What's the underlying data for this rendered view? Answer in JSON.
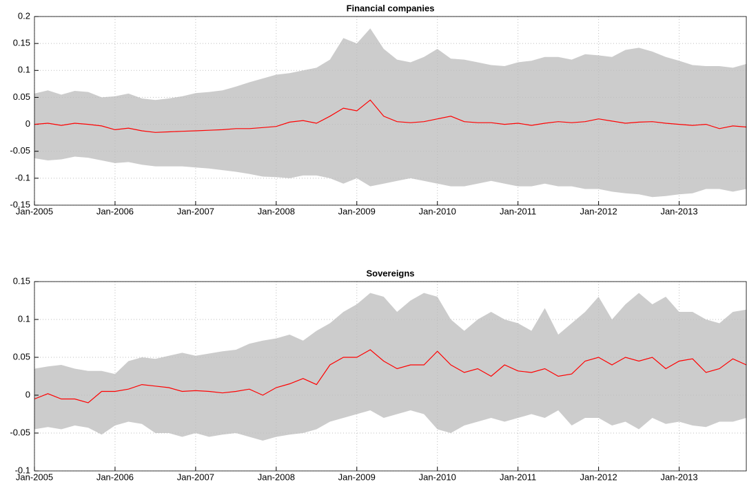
{
  "chart_data": [
    {
      "type": "band-line",
      "title": "Financial companies",
      "x": [
        "2005-01",
        "2005-03",
        "2005-05",
        "2005-07",
        "2005-09",
        "2005-11",
        "2006-01",
        "2006-03",
        "2006-05",
        "2006-07",
        "2006-09",
        "2006-11",
        "2007-01",
        "2007-03",
        "2007-05",
        "2007-07",
        "2007-09",
        "2007-11",
        "2008-01",
        "2008-03",
        "2008-05",
        "2008-07",
        "2008-09",
        "2008-11",
        "2009-01",
        "2009-03",
        "2009-05",
        "2009-07",
        "2009-09",
        "2009-11",
        "2010-01",
        "2010-03",
        "2010-05",
        "2010-07",
        "2010-09",
        "2010-11",
        "2011-01",
        "2011-03",
        "2011-05",
        "2011-07",
        "2011-09",
        "2011-11",
        "2012-01",
        "2012-03",
        "2012-05",
        "2012-07",
        "2012-09",
        "2012-11",
        "2013-01",
        "2013-03",
        "2013-05",
        "2013-07",
        "2013-09",
        "2013-11"
      ],
      "values": [
        0,
        0.002,
        -0.002,
        0.002,
        0,
        -0.003,
        -0.01,
        -0.007,
        -0.012,
        -0.015,
        -0.014,
        -0.013,
        -0.012,
        -0.011,
        -0.01,
        -0.008,
        -0.008,
        -0.006,
        -0.004,
        0.004,
        0.007,
        0.002,
        0.015,
        0.03,
        0.025,
        0.045,
        0.015,
        0.005,
        0.003,
        0.005,
        0.01,
        0.015,
        0.005,
        0.003,
        0.003,
        0,
        0.002,
        -0.002,
        0.002,
        0.005,
        0.003,
        0.005,
        0.01,
        0.006,
        0.002,
        0.004,
        0.005,
        0.002,
        0,
        -0.002,
        0,
        -0.008,
        -0.003,
        -0.005
      ],
      "color": "#ff0000",
      "band": {
        "color": "#cccccc",
        "upper": [
          0.057,
          0.063,
          0.055,
          0.062,
          0.06,
          0.05,
          0.052,
          0.057,
          0.048,
          0.045,
          0.048,
          0.052,
          0.058,
          0.06,
          0.063,
          0.07,
          0.078,
          0.085,
          0.092,
          0.095,
          0.1,
          0.105,
          0.12,
          0.16,
          0.15,
          0.178,
          0.14,
          0.12,
          0.115,
          0.125,
          0.14,
          0.122,
          0.12,
          0.115,
          0.11,
          0.108,
          0.115,
          0.118,
          0.125,
          0.125,
          0.12,
          0.13,
          0.128,
          0.125,
          0.138,
          0.142,
          0.135,
          0.125,
          0.118,
          0.11,
          0.108,
          0.108,
          0.105,
          0.112
        ],
        "lower": [
          -0.063,
          -0.067,
          -0.065,
          -0.06,
          -0.062,
          -0.067,
          -0.072,
          -0.07,
          -0.075,
          -0.078,
          -0.078,
          -0.078,
          -0.08,
          -0.082,
          -0.085,
          -0.088,
          -0.092,
          -0.097,
          -0.098,
          -0.1,
          -0.095,
          -0.095,
          -0.1,
          -0.11,
          -0.1,
          -0.115,
          -0.11,
          -0.105,
          -0.1,
          -0.105,
          -0.11,
          -0.115,
          -0.115,
          -0.11,
          -0.105,
          -0.11,
          -0.115,
          -0.115,
          -0.11,
          -0.115,
          -0.115,
          -0.12,
          -0.12,
          -0.125,
          -0.128,
          -0.13,
          -0.135,
          -0.133,
          -0.13,
          -0.128,
          -0.12,
          -0.12,
          -0.125,
          -0.12
        ]
      },
      "xlim": [
        "2005-01",
        "2013-11"
      ],
      "xticks": [
        {
          "value": "2005-01",
          "label": "Jan-2005"
        },
        {
          "value": "2006-01",
          "label": "Jan-2006"
        },
        {
          "value": "2007-01",
          "label": "Jan-2007"
        },
        {
          "value": "2008-01",
          "label": "Jan-2008"
        },
        {
          "value": "2009-01",
          "label": "Jan-2009"
        },
        {
          "value": "2010-01",
          "label": "Jan-2010"
        },
        {
          "value": "2011-01",
          "label": "Jan-2011"
        },
        {
          "value": "2012-01",
          "label": "Jan-2012"
        },
        {
          "value": "2013-01",
          "label": "Jan-2013"
        }
      ],
      "ylim": [
        -0.15,
        0.2
      ],
      "yticks": [
        -0.15,
        -0.1,
        -0.05,
        0,
        0.05,
        0.1,
        0.15,
        0.2
      ],
      "grid": true
    },
    {
      "type": "band-line",
      "title": "Sovereigns",
      "x": [
        "2005-01",
        "2005-03",
        "2005-05",
        "2005-07",
        "2005-09",
        "2005-11",
        "2006-01",
        "2006-03",
        "2006-05",
        "2006-07",
        "2006-09",
        "2006-11",
        "2007-01",
        "2007-03",
        "2007-05",
        "2007-07",
        "2007-09",
        "2007-11",
        "2008-01",
        "2008-03",
        "2008-05",
        "2008-07",
        "2008-09",
        "2008-11",
        "2009-01",
        "2009-03",
        "2009-05",
        "2009-07",
        "2009-09",
        "2009-11",
        "2010-01",
        "2010-03",
        "2010-05",
        "2010-07",
        "2010-09",
        "2010-11",
        "2011-01",
        "2011-03",
        "2011-05",
        "2011-07",
        "2011-09",
        "2011-11",
        "2012-01",
        "2012-03",
        "2012-05",
        "2012-07",
        "2012-09",
        "2012-11",
        "2013-01",
        "2013-03",
        "2013-05",
        "2013-07",
        "2013-09",
        "2013-11"
      ],
      "values": [
        -0.005,
        0.002,
        -0.005,
        -0.005,
        -0.01,
        0.005,
        0.005,
        0.008,
        0.014,
        0.012,
        0.01,
        0.005,
        0.006,
        0.005,
        0.003,
        0.005,
        0.008,
        0,
        0.01,
        0.015,
        0.022,
        0.014,
        0.04,
        0.05,
        0.05,
        0.06,
        0.045,
        0.035,
        0.04,
        0.04,
        0.058,
        0.04,
        0.03,
        0.035,
        0.025,
        0.04,
        0.032,
        0.03,
        0.035,
        0.025,
        0.028,
        0.045,
        0.05,
        0.04,
        0.05,
        0.045,
        0.05,
        0.035,
        0.045,
        0.048,
        0.03,
        0.035,
        0.048,
        0.04
      ],
      "color": "#ff0000",
      "band": {
        "color": "#cccccc",
        "upper": [
          0.035,
          0.038,
          0.04,
          0.035,
          0.032,
          0.032,
          0.028,
          0.045,
          0.05,
          0.048,
          0.052,
          0.056,
          0.052,
          0.055,
          0.058,
          0.06,
          0.068,
          0.072,
          0.075,
          0.08,
          0.072,
          0.085,
          0.095,
          0.11,
          0.12,
          0.135,
          0.13,
          0.11,
          0.125,
          0.135,
          0.13,
          0.1,
          0.085,
          0.1,
          0.11,
          0.1,
          0.095,
          0.085,
          0.115,
          0.08,
          0.095,
          0.11,
          0.13,
          0.1,
          0.12,
          0.135,
          0.12,
          0.13,
          0.11,
          0.11,
          0.1,
          0.095,
          0.11,
          0.113
        ],
        "lower": [
          -0.045,
          -0.042,
          -0.045,
          -0.04,
          -0.043,
          -0.052,
          -0.04,
          -0.035,
          -0.038,
          -0.05,
          -0.05,
          -0.055,
          -0.05,
          -0.055,
          -0.052,
          -0.05,
          -0.055,
          -0.06,
          -0.055,
          -0.052,
          -0.05,
          -0.045,
          -0.035,
          -0.03,
          -0.025,
          -0.02,
          -0.03,
          -0.025,
          -0.02,
          -0.025,
          -0.045,
          -0.05,
          -0.04,
          -0.035,
          -0.03,
          -0.035,
          -0.03,
          -0.025,
          -0.03,
          -0.02,
          -0.04,
          -0.03,
          -0.03,
          -0.04,
          -0.035,
          -0.045,
          -0.03,
          -0.038,
          -0.035,
          -0.04,
          -0.042,
          -0.035,
          -0.035,
          -0.03
        ]
      },
      "xlim": [
        "2005-01",
        "2013-11"
      ],
      "xticks": [
        {
          "value": "2005-01",
          "label": "Jan-2005"
        },
        {
          "value": "2006-01",
          "label": "Jan-2006"
        },
        {
          "value": "2007-01",
          "label": "Jan-2007"
        },
        {
          "value": "2008-01",
          "label": "Jan-2008"
        },
        {
          "value": "2009-01",
          "label": "Jan-2009"
        },
        {
          "value": "2010-01",
          "label": "Jan-2010"
        },
        {
          "value": "2011-01",
          "label": "Jan-2011"
        },
        {
          "value": "2012-01",
          "label": "Jan-2012"
        },
        {
          "value": "2013-01",
          "label": "Jan-2013"
        }
      ],
      "ylim": [
        -0.1,
        0.15
      ],
      "yticks": [
        -0.1,
        -0.05,
        0,
        0.05,
        0.1,
        0.15
      ],
      "grid": true
    }
  ]
}
